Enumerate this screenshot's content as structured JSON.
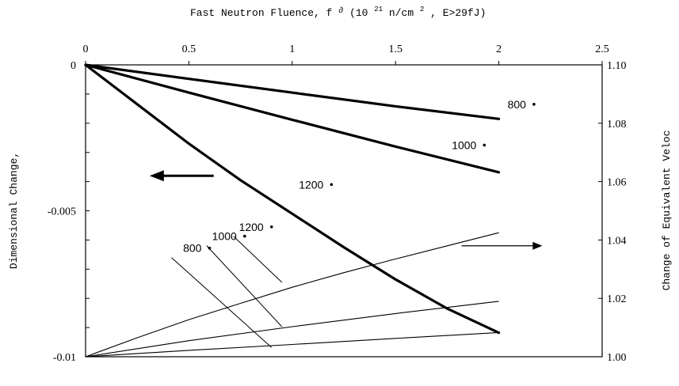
{
  "chart_data": {
    "type": "line",
    "title": "Fast Neutron Fluence, f",
    "title_suffix": "(10",
    "title_exp": "21",
    "title_unit": " n/cm",
    "title_unit_exp": "2",
    "title_end": ", E>29fJ)",
    "title_symbol": "∂",
    "ylabel": "Dimensional Change,",
    "y2label": "Change of Equivalent Veloc",
    "xlim": [
      0,
      2.5
    ],
    "ylim": [
      -0.01,
      0
    ],
    "y2lim": [
      1.0,
      1.1
    ],
    "x_ticks": [
      0,
      0.5,
      1,
      1.5,
      2,
      2.5
    ],
    "x_tick_labels": [
      "0",
      "0.5",
      "1",
      "1.5",
      "2",
      "2.5"
    ],
    "y_ticks": [
      0,
      -0.005,
      -0.01
    ],
    "y_tick_labels": [
      "0",
      "-0.005",
      "-0.01"
    ],
    "y_minor_count": 10,
    "y2_ticks": [
      1.0,
      1.02,
      1.04,
      1.06,
      1.08,
      1.1
    ],
    "y2_tick_labels": [
      "1.00",
      "1.02",
      "1.04",
      "1.06",
      "1.08",
      "1.10"
    ],
    "dimensional_series": [
      {
        "label": "800",
        "axis": "left",
        "x": [
          0,
          0.5,
          1,
          1.5,
          2
        ],
        "y": [
          0,
          -0.00048,
          -0.00095,
          -0.00142,
          -0.00185
        ]
      },
      {
        "label": "1000",
        "axis": "left",
        "x": [
          0,
          0.5,
          1,
          1.5,
          2
        ],
        "y": [
          0,
          -0.00095,
          -0.00188,
          -0.0028,
          -0.00368
        ]
      },
      {
        "label": "1200",
        "axis": "left",
        "x": [
          0,
          0.25,
          0.5,
          0.75,
          1,
          1.25,
          1.5,
          1.75,
          2
        ],
        "y": [
          0,
          -0.00135,
          -0.0027,
          -0.00395,
          -0.0051,
          -0.00625,
          -0.00735,
          -0.00835,
          -0.00918
        ]
      }
    ],
    "velocity_series": [
      {
        "label": "800",
        "axis": "right",
        "x": [
          0,
          0.5,
          1,
          1.5,
          2
        ],
        "y": [
          1.0,
          1.0022,
          1.0042,
          1.0063,
          1.0083
        ]
      },
      {
        "label": "1000",
        "axis": "right",
        "x": [
          0,
          0.5,
          1,
          1.5,
          2
        ],
        "y": [
          1.0,
          1.0055,
          1.0103,
          1.0148,
          1.019
        ]
      },
      {
        "label": "1200",
        "axis": "right",
        "x": [
          0,
          0.25,
          0.5,
          0.75,
          1,
          1.25,
          1.5,
          1.75,
          2
        ],
        "y": [
          1.0,
          1.0065,
          1.0127,
          1.0183,
          1.0238,
          1.0288,
          1.0335,
          1.038,
          1.0425
        ]
      }
    ],
    "left_labels": [
      {
        "text": "800",
        "dot_x": 2.17,
        "dot_y": -0.00135
      },
      {
        "text": "1000",
        "dot_x": 1.93,
        "dot_y": -0.00275
      },
      {
        "text": "1200",
        "dot_x": 1.19,
        "dot_y": -0.0041
      }
    ],
    "right_labels": [
      {
        "text": "1200",
        "dot_x": 0.9,
        "dot_y": 1.0445,
        "target_x": 0.95,
        "target_y": 1.0255
      },
      {
        "text": "1000",
        "dot_x": 0.77,
        "dot_y": 1.0413,
        "target_x": 0.95,
        "target_y": 1.0103
      },
      {
        "text": "800",
        "dot_x": 0.6,
        "dot_y": 1.0372,
        "target_x": 0.9,
        "target_y": 1.0032
      }
    ],
    "arrow_left": {
      "x_from": 0.62,
      "x_to": 0.31,
      "y": -0.0038
    },
    "arrow_right": {
      "x_from": 1.82,
      "x_to": 2.21,
      "y": 1.038
    },
    "grid": false,
    "legend": "none"
  }
}
